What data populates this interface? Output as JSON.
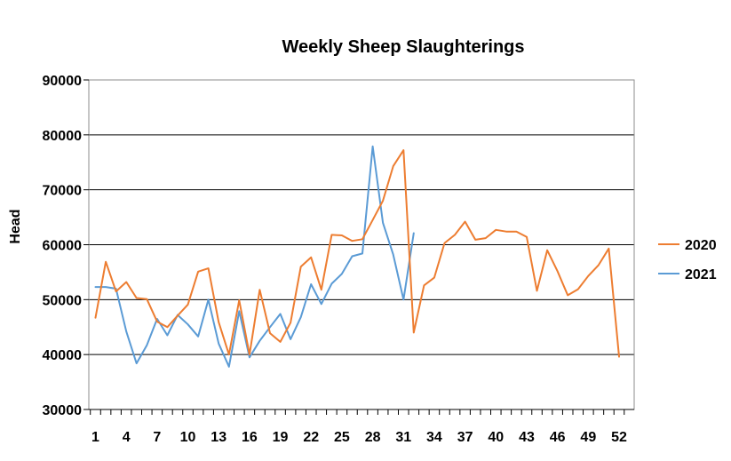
{
  "chart_data": {
    "type": "line",
    "title": "Weekly Sheep Slaughterings",
    "xlabel": "",
    "ylabel": "Head",
    "ylim": [
      30000,
      90000
    ],
    "yticks": [
      30000,
      40000,
      50000,
      60000,
      70000,
      80000,
      90000
    ],
    "xlim": [
      1,
      52
    ],
    "xticks": [
      1,
      4,
      7,
      10,
      13,
      16,
      19,
      22,
      25,
      28,
      31,
      34,
      37,
      40,
      43,
      46,
      49,
      52
    ],
    "grid": "horizontal",
    "legend": "right",
    "series": [
      {
        "name": "2020",
        "color": "#ED7D31",
        "x": [
          1,
          2,
          3,
          4,
          5,
          6,
          7,
          8,
          9,
          10,
          11,
          12,
          13,
          14,
          15,
          16,
          17,
          18,
          19,
          20,
          21,
          22,
          23,
          24,
          25,
          26,
          27,
          28,
          29,
          30,
          31,
          32,
          33,
          34,
          35,
          36,
          37,
          38,
          39,
          40,
          41,
          42,
          43,
          44,
          45,
          46,
          47,
          48,
          49,
          50,
          51,
          52
        ],
        "values": [
          46700,
          56900,
          51500,
          53200,
          50300,
          50100,
          46000,
          45000,
          47100,
          49100,
          55100,
          55700,
          45900,
          40000,
          49900,
          40000,
          51800,
          43900,
          42300,
          45800,
          56000,
          57700,
          51800,
          61800,
          61700,
          60700,
          61000,
          64500,
          68000,
          74300,
          77200,
          44000,
          52600,
          54000,
          60300,
          61800,
          64200,
          60900,
          61200,
          62700,
          62400,
          62400,
          61400,
          51600,
          59000,
          55200,
          50800,
          51900,
          54300,
          56300,
          59300,
          39600
        ]
      },
      {
        "name": "2021",
        "color": "#5B9BD5",
        "x": [
          1,
          2,
          3,
          4,
          5,
          6,
          7,
          8,
          9,
          10,
          11,
          12,
          13,
          14,
          15,
          16,
          17,
          18,
          19,
          20,
          21,
          22,
          23,
          24,
          25,
          26,
          27,
          28,
          29,
          30,
          31,
          32
        ],
        "values": [
          52300,
          52300,
          52000,
          44200,
          38400,
          41700,
          46500,
          43500,
          47200,
          45500,
          43300,
          50000,
          42000,
          37800,
          47900,
          39500,
          42500,
          45000,
          47400,
          42800,
          46800,
          52800,
          49200,
          52900,
          54700,
          57900,
          58400,
          77900,
          64000,
          58200,
          50000,
          62100
        ]
      }
    ]
  }
}
